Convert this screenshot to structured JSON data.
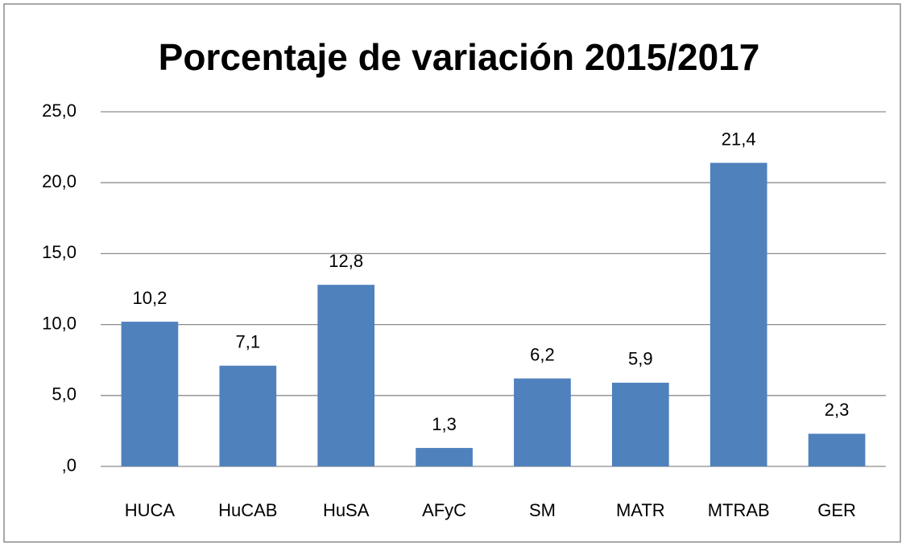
{
  "chart_data": {
    "type": "bar",
    "title": "Porcentaje de variación 2015/2017",
    "categories": [
      "HUCA",
      "HuCAB",
      "HuSA",
      "AFyC",
      "SM",
      "MATR",
      "MTRAB",
      "GER"
    ],
    "values": [
      10.2,
      7.1,
      12.8,
      1.3,
      6.2,
      5.9,
      21.4,
      2.3
    ],
    "value_labels": [
      "10,2",
      "7,1",
      "12,8",
      "1,3",
      "6,2",
      "5,9",
      "21,4",
      "2,3"
    ],
    "color": "#4f81bd",
    "ylim": [
      0,
      25
    ],
    "yticks": [
      {
        "value": 0,
        "label": ",0"
      },
      {
        "value": 5,
        "label": "5,0"
      },
      {
        "value": 10,
        "label": "10,0"
      },
      {
        "value": 15,
        "label": "15,0"
      },
      {
        "value": 20,
        "label": "20,0"
      },
      {
        "value": 25,
        "label": "25,0"
      }
    ],
    "grid": true
  }
}
